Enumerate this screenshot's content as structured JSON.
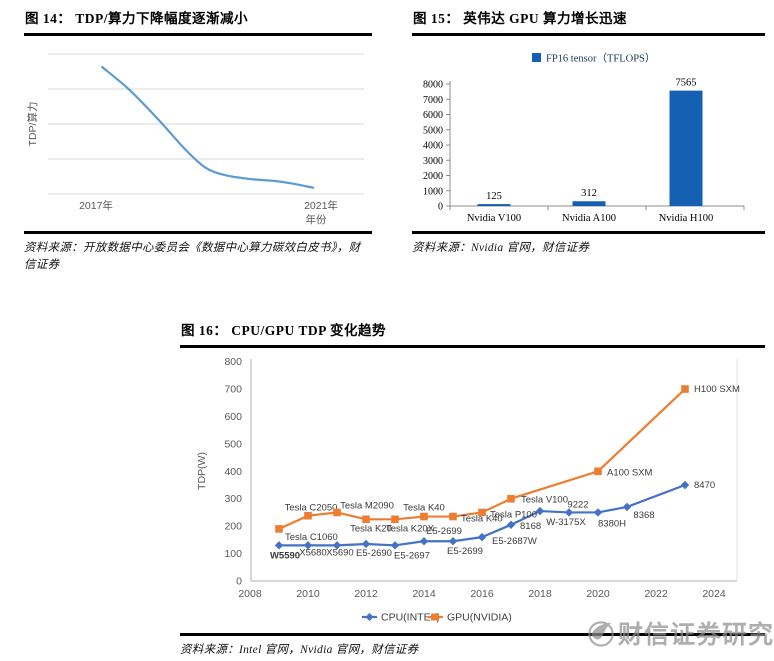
{
  "page": {
    "background": "#ffffff"
  },
  "figures": [
    {
      "title": "图 14： TDP/算力下降幅度逐渐减小",
      "source": "资料来源：开放数据中心委员会《数据中心算力碳效白皮书》，财信证券"
    },
    {
      "title": "图 15： 英伟达 GPU 算力增长迅速",
      "source": "资料来源：Nvidia 官网，财信证券"
    },
    {
      "title": "图 16： CPU/GPU TDP 变化趋势",
      "source": "资料来源：Intel 官网，Nvidia 官网，财信证券"
    }
  ],
  "watermark": {
    "text": "财信证券研究",
    "logo": "phoenix-circle-logo",
    "color": "#8f8f8f"
  },
  "chart_data": [
    {
      "type": "line",
      "title": "TDP/算力下降幅度逐渐减小",
      "ylabel": "TDP/算力",
      "xlabel": "年份",
      "x_tick_labels": [
        "2017年",
        "2021年"
      ],
      "y_tick_labels": [],
      "grid": true,
      "gridline_count": 5,
      "legend_position": "none",
      "line_color": "#5b9bd5",
      "grid_color": "#d9d9d9",
      "note": "y-axis is unlabeled; points are relative estimates (x = fraction across plot, y = fraction of plot height) read against gridlines",
      "points_rel": [
        [
          0.166,
          0.907
        ],
        [
          0.255,
          0.74
        ],
        [
          0.35,
          0.52
        ],
        [
          0.43,
          0.32
        ],
        [
          0.494,
          0.19
        ],
        [
          0.557,
          0.135
        ],
        [
          0.637,
          0.107
        ],
        [
          0.717,
          0.093
        ],
        [
          0.78,
          0.071
        ],
        [
          0.838,
          0.045
        ]
      ]
    },
    {
      "type": "bar",
      "title": "英伟达 GPU 算力增长迅速",
      "legend": [
        "FP16 tensor（TFLOPS）"
      ],
      "legend_position": "top",
      "categories": [
        "Nvidia V100",
        "Nvidia A100",
        "Nvidia H100"
      ],
      "values": [
        125,
        312,
        7565
      ],
      "value_labels": [
        "125",
        "312",
        "7565"
      ],
      "ylim": [
        0,
        8000
      ],
      "y_ticks": [
        0,
        1000,
        2000,
        3000,
        4000,
        5000,
        6000,
        7000,
        8000
      ],
      "grid": false,
      "bar_color": "#1560b2",
      "legend_text_color": "#17365d",
      "axis_color": "#8c8c8c"
    },
    {
      "type": "line",
      "title": "CPU/GPU TDP 变化趋势",
      "ylabel": "TDP(W)",
      "ylim": [
        0,
        800
      ],
      "y_ticks": [
        0,
        100,
        200,
        300,
        400,
        500,
        600,
        700,
        800
      ],
      "xlim": [
        2008,
        2024
      ],
      "x_ticks": [
        2008,
        2010,
        2012,
        2014,
        2016,
        2018,
        2020,
        2022,
        2024
      ],
      "grid": false,
      "legend_position": "bottom",
      "series": [
        {
          "name": "CPU(INTEL)",
          "color": "#4472c4",
          "marker": "diamond",
          "points": [
            {
              "x": 2009,
              "y": 130,
              "label": "W5590",
              "dx": 6,
              "dy": 13,
              "anchor": "middle",
              "bold": true
            },
            {
              "x": 2010,
              "y": 130,
              "label": "X5680",
              "dx": 5,
              "dy": 10,
              "anchor": "middle"
            },
            {
              "x": 2011,
              "y": 130,
              "label": "X5690",
              "dx": 3,
              "dy": 10,
              "anchor": "middle"
            },
            {
              "x": 2012,
              "y": 135,
              "label": "E5-2690",
              "dx": 8,
              "dy": 12,
              "anchor": "middle"
            },
            {
              "x": 2013,
              "y": 130,
              "label": "E5-2697",
              "dx": 17,
              "dy": 13,
              "anchor": "middle"
            },
            {
              "x": 2014,
              "y": 145,
              "label": "E5-2699",
              "dx": 2,
              "dy": -7,
              "anchor": "start"
            },
            {
              "x": 2015,
              "y": 145,
              "label": "E5-2699",
              "dx": 12,
              "dy": 13,
              "anchor": "middle"
            },
            {
              "x": 2016,
              "y": 160,
              "label": "E5-2687W",
              "dx": 10,
              "dy": 7,
              "anchor": "start"
            },
            {
              "x": 2017,
              "y": 205,
              "label": "8168",
              "dx": 9,
              "dy": 4,
              "anchor": "start"
            },
            {
              "x": 2018,
              "y": 255,
              "label": "W-3175X",
              "dx": 26,
              "dy": 14,
              "anchor": "middle"
            },
            {
              "x": 2019,
              "y": 250,
              "label": "9222",
              "dx": 9,
              "dy": -5,
              "anchor": "middle"
            },
            {
              "x": 2020,
              "y": 250,
              "label": "8380H",
              "dx": 14,
              "dy": 14,
              "anchor": "middle"
            },
            {
              "x": 2021,
              "y": 270,
              "label": "8368",
              "dx": 17,
              "dy": 11,
              "anchor": "middle"
            },
            {
              "x": 2023,
              "y": 350,
              "label": "8470",
              "dx": 9,
              "dy": 3,
              "anchor": "start"
            }
          ]
        },
        {
          "name": "GPU(NVIDIA)",
          "color": "#ed7d31",
          "marker": "square",
          "points": [
            {
              "x": 2009,
              "y": 190,
              "label": "Tesla C1060",
              "dx": 6,
              "dy": 11,
              "anchor": "start"
            },
            {
              "x": 2010,
              "y": 238,
              "label": "Tesla C2050",
              "dx": 3,
              "dy": -5,
              "anchor": "middle"
            },
            {
              "x": 2011,
              "y": 250,
              "label": "Tesla M2090",
              "dx": 30,
              "dy": -4,
              "anchor": "middle"
            },
            {
              "x": 2012,
              "y": 225,
              "label": "Tesla K20",
              "dx": 5,
              "dy": 12,
              "anchor": "middle"
            },
            {
              "x": 2013,
              "y": 225,
              "label": "Tesla K20X",
              "dx": 15,
              "dy": 12,
              "anchor": "middle"
            },
            {
              "x": 2014,
              "y": 235,
              "label": "Tesla K40",
              "dx": 0,
              "dy": -6,
              "anchor": "middle"
            },
            {
              "x": 2015,
              "y": 235,
              "label": "Tesla K40",
              "dx": 8,
              "dy": 5,
              "anchor": "start"
            },
            {
              "x": 2016,
              "y": 250,
              "label": "Tesla P100",
              "dx": 8,
              "dy": 5,
              "anchor": "start"
            },
            {
              "x": 2017,
              "y": 300,
              "label": "Tesla V100",
              "dx": 10,
              "dy": 4,
              "anchor": "start"
            },
            {
              "x": 2020,
              "y": 400,
              "label": "A100 SXM",
              "dx": 9,
              "dy": 4,
              "anchor": "start"
            },
            {
              "x": 2023,
              "y": 700,
              "label": "H100 SXM",
              "dx": 9,
              "dy": 3,
              "anchor": "start"
            }
          ]
        }
      ]
    }
  ]
}
